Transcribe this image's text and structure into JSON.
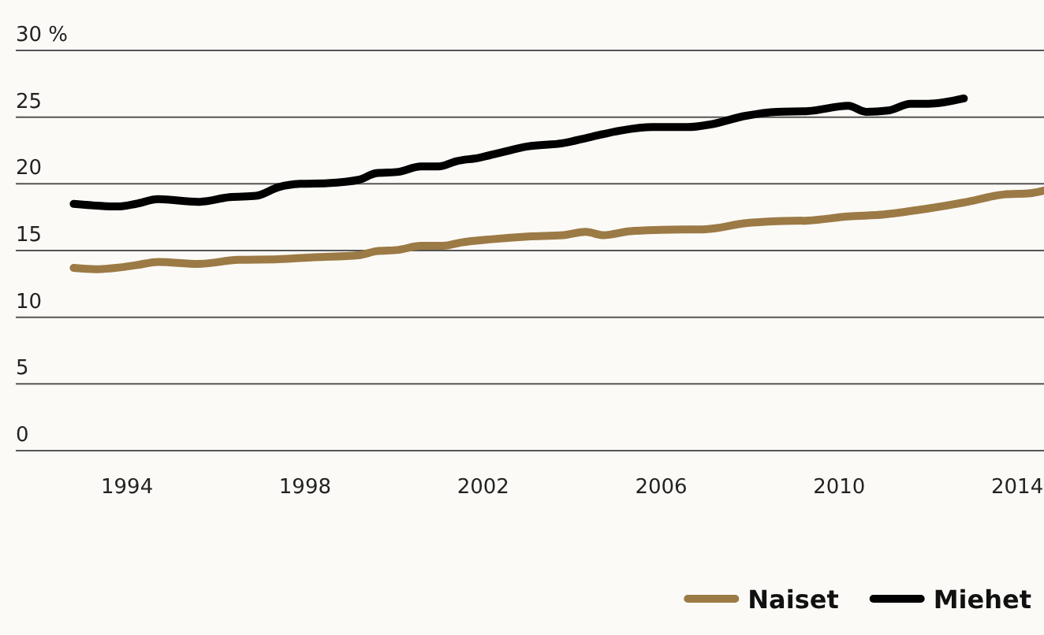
{
  "chart_data": {
    "type": "line",
    "xlim": [
      1991.5,
      2014.6
    ],
    "xticks": [
      1994,
      1998,
      2002,
      2006,
      2010,
      2014
    ],
    "ylim": [
      0,
      30
    ],
    "yticks": [
      0,
      5,
      10,
      15,
      20,
      25,
      {
        "value": 30,
        "label": "30 %"
      }
    ],
    "grid": "y",
    "legend": "bottom right",
    "line_style": "solid",
    "marker": "none",
    "series": [
      {
        "name": "Naiset",
        "color": "#9c7a45",
        "x": [
          1992.8,
          1993.3,
          1994.2,
          1994.7,
          1995.6,
          1996.5,
          1997.4,
          1998.2,
          1999.2,
          1999.6,
          2000.1,
          2000.6,
          2001.1,
          2001.5,
          2002.2,
          2003.0,
          2003.8,
          2004.3,
          2004.7,
          2005.3,
          2006.0,
          2007.0,
          2007.9,
          2008.6,
          2009.3,
          2010.2,
          2011.0,
          2011.9,
          2012.8,
          2013.7,
          2014.3,
          2014.6
        ],
        "values": [
          13.7,
          13.6,
          13.9,
          14.15,
          14.0,
          14.3,
          14.35,
          14.5,
          14.65,
          14.95,
          15.05,
          15.35,
          15.35,
          15.6,
          15.85,
          16.05,
          16.15,
          16.4,
          16.15,
          16.45,
          16.55,
          16.6,
          17.05,
          17.2,
          17.25,
          17.55,
          17.7,
          18.1,
          18.6,
          19.2,
          19.3,
          19.5
        ]
      },
      {
        "name": "Miehet",
        "color": "#000000",
        "x": [
          1992.8,
          1993.8,
          1994.2,
          1994.7,
          1995.6,
          1996.3,
          1996.9,
          1997.4,
          1997.9,
          1998.5,
          1999.2,
          1999.6,
          2000.1,
          2000.6,
          2001.0,
          2001.4,
          2001.9,
          2002.4,
          2003.0,
          2003.8,
          2004.4,
          2005.1,
          2005.8,
          2006.6,
          2007.1,
          2007.9,
          2008.6,
          2009.3,
          2010.2,
          2010.6,
          2011.1,
          2011.6,
          2012.0,
          2012.8
        ],
        "values": [
          18.5,
          18.3,
          18.5,
          18.85,
          18.65,
          19.0,
          19.1,
          19.75,
          20.0,
          20.05,
          20.3,
          20.8,
          20.9,
          21.3,
          21.3,
          21.7,
          21.95,
          22.35,
          22.8,
          23.05,
          23.5,
          24.0,
          24.25,
          24.25,
          24.45,
          25.1,
          25.4,
          25.45,
          25.85,
          25.4,
          25.5,
          26.0,
          26.0,
          26.4
        ]
      }
    ]
  }
}
